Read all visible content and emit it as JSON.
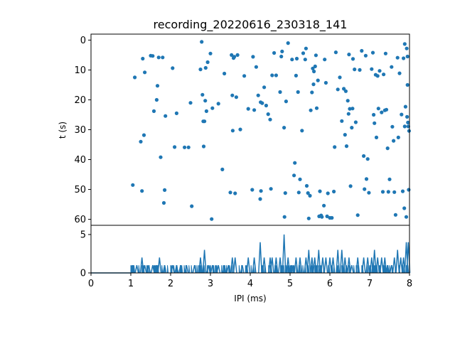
{
  "chart_data": [
    {
      "type": "scatter",
      "title": "recording_20220616_230318_141",
      "xlabel": "",
      "ylabel": "t (s)",
      "xlim": [
        0,
        8
      ],
      "ylim": [
        62,
        -2
      ],
      "y_inverted": true,
      "yticks": [
        "0",
        "10",
        "20",
        "30",
        "40",
        "50",
        "60"
      ],
      "marker_color": "#1f77b4",
      "points": [
        [
          1.05,
          48.5
        ],
        [
          1.1,
          12.5
        ],
        [
          1.25,
          34
        ],
        [
          1.28,
          50.5
        ],
        [
          1.3,
          6.2
        ],
        [
          1.33,
          31.8
        ],
        [
          1.35,
          10.8
        ],
        [
          1.5,
          5.2
        ],
        [
          1.55,
          5.3
        ],
        [
          1.58,
          23.8
        ],
        [
          1.65,
          20
        ],
        [
          1.67,
          15.3
        ],
        [
          1.7,
          5.8
        ],
        [
          1.75,
          39.2
        ],
        [
          1.8,
          5.8
        ],
        [
          1.83,
          54.5
        ],
        [
          1.85,
          50.2
        ],
        [
          1.87,
          25.4
        ],
        [
          2.05,
          9.4
        ],
        [
          2.1,
          35.8
        ],
        [
          2.15,
          24.5
        ],
        [
          2.35,
          35.9
        ],
        [
          2.45,
          35.9
        ],
        [
          2.5,
          21
        ],
        [
          2.53,
          55.6
        ],
        [
          2.75,
          9.8
        ],
        [
          2.78,
          0.6
        ],
        [
          2.8,
          18.3
        ],
        [
          2.82,
          27.2
        ],
        [
          2.83,
          35.6
        ],
        [
          2.85,
          27.2
        ],
        [
          2.87,
          20.3
        ],
        [
          2.88,
          9.3
        ],
        [
          2.9,
          23.8
        ],
        [
          2.93,
          7.4
        ],
        [
          3.0,
          4.5
        ],
        [
          3.03,
          59.9
        ],
        [
          3.05,
          22.8
        ],
        [
          3.2,
          21.3
        ],
        [
          3.3,
          43.3
        ],
        [
          3.35,
          11.2
        ],
        [
          3.5,
          51
        ],
        [
          3.53,
          5
        ],
        [
          3.55,
          18.5
        ],
        [
          3.56,
          30.3
        ],
        [
          3.58,
          6
        ],
        [
          3.6,
          5.6
        ],
        [
          3.62,
          51.3
        ],
        [
          3.65,
          19.1
        ],
        [
          3.68,
          5
        ],
        [
          3.75,
          29.9
        ],
        [
          3.85,
          12
        ],
        [
          3.95,
          23
        ],
        [
          4.05,
          50.1
        ],
        [
          4.07,
          5.6
        ],
        [
          4.1,
          23.4
        ],
        [
          4.15,
          9
        ],
        [
          4.2,
          18.5
        ],
        [
          4.25,
          53.2
        ],
        [
          4.26,
          20.8
        ],
        [
          4.27,
          50.5
        ],
        [
          4.3,
          21.1
        ],
        [
          4.35,
          15.8
        ],
        [
          4.4,
          21.9
        ],
        [
          4.45,
          24.8
        ],
        [
          4.5,
          26.6
        ],
        [
          4.52,
          49.8
        ],
        [
          4.55,
          11.8
        ],
        [
          4.6,
          4.3
        ],
        [
          4.65,
          11.8
        ],
        [
          4.75,
          17.4
        ],
        [
          4.78,
          5.5
        ],
        [
          4.8,
          3.8
        ],
        [
          4.85,
          29.3
        ],
        [
          4.86,
          59.2
        ],
        [
          4.88,
          51.2
        ],
        [
          4.9,
          20.5
        ],
        [
          4.95,
          1
        ],
        [
          5.05,
          6.5
        ],
        [
          5.1,
          45.3
        ],
        [
          5.12,
          41.1
        ],
        [
          5.15,
          11.9
        ],
        [
          5.17,
          6.2
        ],
        [
          5.2,
          17.4
        ],
        [
          5.22,
          51
        ],
        [
          5.25,
          46.6
        ],
        [
          5.3,
          30.3
        ],
        [
          5.33,
          4.4
        ],
        [
          5.38,
          6.5
        ],
        [
          5.4,
          2.8
        ],
        [
          5.42,
          48.8
        ],
        [
          5.45,
          51.2
        ],
        [
          5.47,
          59.7
        ],
        [
          5.5,
          52.1
        ],
        [
          5.52,
          23.5
        ],
        [
          5.55,
          17.5
        ],
        [
          5.57,
          9.5
        ],
        [
          5.59,
          14.8
        ],
        [
          5.6,
          10.5
        ],
        [
          5.63,
          8.8
        ],
        [
          5.65,
          5.1
        ],
        [
          5.67,
          22.8
        ],
        [
          5.7,
          13.5
        ],
        [
          5.73,
          59
        ],
        [
          5.75,
          50.6
        ],
        [
          5.78,
          58.7
        ],
        [
          5.8,
          59.2
        ],
        [
          5.85,
          55.4
        ],
        [
          5.87,
          6.5
        ],
        [
          5.9,
          14.3
        ],
        [
          5.93,
          59
        ],
        [
          5.95,
          51.3
        ],
        [
          6.0,
          59.5
        ],
        [
          6.05,
          59.5
        ],
        [
          6.1,
          50.7
        ],
        [
          6.12,
          35.8
        ],
        [
          6.15,
          4.1
        ],
        [
          6.2,
          16.5
        ],
        [
          6.25,
          12.5
        ],
        [
          6.3,
          27.1
        ],
        [
          6.35,
          16.3
        ],
        [
          6.38,
          31.7
        ],
        [
          6.4,
          17.1
        ],
        [
          6.42,
          35.5
        ],
        [
          6.45,
          20.3
        ],
        [
          6.47,
          24.7
        ],
        [
          6.48,
          4.8
        ],
        [
          6.5,
          23
        ],
        [
          6.52,
          48.9
        ],
        [
          6.55,
          29.3
        ],
        [
          6.57,
          22.9
        ],
        [
          6.58,
          6.3
        ],
        [
          6.62,
          9.8
        ],
        [
          6.65,
          27.5
        ],
        [
          6.7,
          58.6
        ],
        [
          6.75,
          10
        ],
        [
          6.8,
          3.6
        ],
        [
          6.85,
          38.8
        ],
        [
          6.87,
          49.9
        ],
        [
          6.9,
          5.2
        ],
        [
          6.92,
          46.5
        ],
        [
          6.95,
          39.8
        ],
        [
          6.98,
          51.1
        ],
        [
          7.05,
          9.7
        ],
        [
          7.08,
          4.2
        ],
        [
          7.1,
          25
        ],
        [
          7.12,
          27.8
        ],
        [
          7.15,
          11.6
        ],
        [
          7.17,
          32.6
        ],
        [
          7.2,
          12
        ],
        [
          7.22,
          22.9
        ],
        [
          7.25,
          10.3
        ],
        [
          7.3,
          24.2
        ],
        [
          7.33,
          50.8
        ],
        [
          7.35,
          11.5
        ],
        [
          7.38,
          23.5
        ],
        [
          7.4,
          4.5
        ],
        [
          7.42,
          23.3
        ],
        [
          7.45,
          36.2
        ],
        [
          7.47,
          50.8
        ],
        [
          7.5,
          46.6
        ],
        [
          7.55,
          9
        ],
        [
          7.57,
          29
        ],
        [
          7.6,
          33.7
        ],
        [
          7.62,
          50.9
        ],
        [
          7.65,
          58.5
        ],
        [
          7.7,
          5.9
        ],
        [
          7.72,
          32.6
        ],
        [
          7.75,
          11.1
        ],
        [
          7.8,
          24.9
        ],
        [
          7.83,
          50.6
        ],
        [
          7.85,
          6.1
        ],
        [
          7.87,
          56.3
        ],
        [
          7.88,
          28.9
        ],
        [
          7.9,
          22.3
        ],
        [
          7.92,
          59.2
        ],
        [
          7.94,
          25.7
        ],
        [
          7.95,
          15
        ],
        [
          7.96,
          27.6
        ],
        [
          7.97,
          28.9
        ],
        [
          7.98,
          50.1
        ],
        [
          7.99,
          30.4
        ],
        [
          7.95,
          5.5
        ],
        [
          7.88,
          1.3
        ],
        [
          7.93,
          2.8
        ]
      ]
    },
    {
      "type": "line",
      "title": "",
      "xlabel": "IPI (ms)",
      "ylabel": "",
      "xlim": [
        0,
        8
      ],
      "ylim": [
        0,
        6.2
      ],
      "xticks": [
        "0",
        "1",
        "2",
        "3",
        "4",
        "5",
        "6",
        "7",
        "8"
      ],
      "yticks": [
        "0",
        "5"
      ],
      "line_color": "#1f77b4",
      "base_start": 1.0,
      "active_range": [
        1.0,
        8.0
      ],
      "peaks": [
        [
          1.05,
          1
        ],
        [
          1.15,
          1
        ],
        [
          1.28,
          2
        ],
        [
          1.35,
          1
        ],
        [
          1.45,
          1
        ],
        [
          1.55,
          1
        ],
        [
          1.65,
          1
        ],
        [
          1.72,
          2
        ],
        [
          1.85,
          1
        ],
        [
          2.05,
          1
        ],
        [
          2.15,
          1
        ],
        [
          2.25,
          1
        ],
        [
          2.4,
          1
        ],
        [
          2.6,
          1
        ],
        [
          2.75,
          2
        ],
        [
          2.85,
          3
        ],
        [
          2.95,
          1
        ],
        [
          3.05,
          1
        ],
        [
          3.2,
          1
        ],
        [
          3.35,
          1
        ],
        [
          3.45,
          1
        ],
        [
          3.55,
          2
        ],
        [
          3.62,
          2
        ],
        [
          3.8,
          1
        ],
        [
          3.95,
          2
        ],
        [
          4.1,
          2
        ],
        [
          4.25,
          4
        ],
        [
          4.35,
          2
        ],
        [
          4.5,
          2
        ],
        [
          4.55,
          2
        ],
        [
          4.65,
          2
        ],
        [
          4.75,
          2
        ],
        [
          4.85,
          5
        ],
        [
          4.95,
          2
        ],
        [
          5.05,
          1
        ],
        [
          5.15,
          2
        ],
        [
          5.25,
          2
        ],
        [
          5.4,
          2
        ],
        [
          5.47,
          3
        ],
        [
          5.55,
          2
        ],
        [
          5.62,
          2
        ],
        [
          5.72,
          3
        ],
        [
          5.82,
          2
        ],
        [
          5.9,
          2
        ],
        [
          6.0,
          2
        ],
        [
          6.08,
          2
        ],
        [
          6.2,
          3
        ],
        [
          6.3,
          3
        ],
        [
          6.38,
          2
        ],
        [
          6.48,
          2
        ],
        [
          6.55,
          1
        ],
        [
          6.7,
          2
        ],
        [
          6.85,
          2
        ],
        [
          6.95,
          2
        ],
        [
          7.05,
          2
        ],
        [
          7.12,
          3
        ],
        [
          7.2,
          2
        ],
        [
          7.3,
          2
        ],
        [
          7.38,
          2
        ],
        [
          7.45,
          1
        ],
        [
          7.55,
          1
        ],
        [
          7.62,
          2
        ],
        [
          7.7,
          3
        ],
        [
          7.78,
          2
        ],
        [
          7.85,
          2
        ],
        [
          7.92,
          4
        ],
        [
          7.97,
          4
        ]
      ]
    }
  ]
}
